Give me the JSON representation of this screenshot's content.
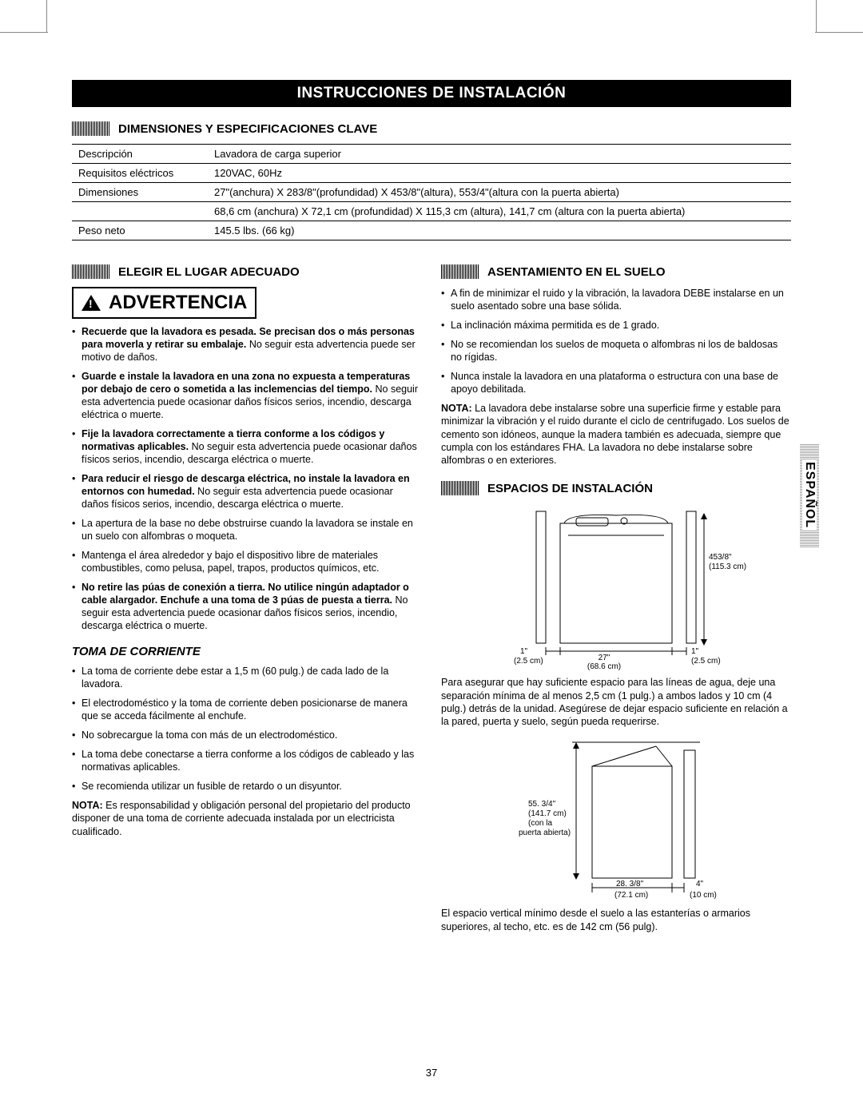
{
  "page_number": "37",
  "main_title": "INSTRUCCIONES DE INSTALACIÓN",
  "side_tab": "ESPAÑOL",
  "sections": {
    "specs_header": "DIMENSIONES Y ESPECIFICACIONES CLAVE",
    "location_header": "ELEGIR EL LUGAR ADECUADO",
    "floor_header": "ASENTAMIENTO EN EL SUELO",
    "clearance_header": "ESPACIOS DE INSTALACIÓN"
  },
  "spec_table": {
    "rows": [
      [
        "Descripción",
        "Lavadora de carga superior"
      ],
      [
        "Requisitos eléctricos",
        "120VAC, 60Hz"
      ],
      [
        "Dimensiones",
        "27\"(anchura) X 283/8\"(profundidad) X 453/8\"(altura), 553/4\"(altura con la puerta abierta)"
      ],
      [
        "",
        "68,6 cm (anchura) X 72,1 cm (profundidad) X 115,3 cm (altura), 141,7 cm (altura con la puerta abierta)"
      ],
      [
        "Peso neto",
        "145.5 lbs. (66 kg)"
      ]
    ]
  },
  "warning_label": "ADVERTENCIA",
  "warning_bullets": [
    {
      "bold": "Recuerde que la lavadora es pesada. Se precisan dos o más personas para moverla y retirar su embalaje.",
      "rest": " No seguir esta advertencia puede ser motivo de daños."
    },
    {
      "bold": "Guarde e instale la lavadora en una zona no expuesta a temperaturas por debajo de cero o sometida a las inclemencias del tiempo.",
      "rest": " No seguir esta advertencia puede ocasionar daños físicos serios, incendio, descarga eléctrica o muerte."
    },
    {
      "bold": "Fije la lavadora correctamente a tierra conforme a los códigos y normativas aplicables.",
      "rest": " No seguir esta advertencia puede ocasionar daños físicos serios, incendio, descarga eléctrica o muerte."
    },
    {
      "bold": "Para reducir el riesgo de descarga eléctrica, no instale la lavadora en entornos con humedad.",
      "rest": " No seguir esta advertencia puede ocasionar daños físicos serios, incendio, descarga eléctrica o muerte."
    },
    {
      "bold": "",
      "rest": "La apertura de la base no debe obstruirse cuando la lavadora se instale en un suelo con alfombras o moqueta."
    },
    {
      "bold": "",
      "rest": "Mantenga el área alrededor y bajo el dispositivo libre de materiales combustibles, como pelusa, papel, trapos, productos químicos, etc."
    },
    {
      "bold": "No retire las púas de conexión a tierra. No utilice ningún adaptador o cable alargador. Enchufe a una toma de 3 púas de puesta a tierra.",
      "rest": " No seguir esta advertencia puede ocasionar daños físicos serios, incendio, descarga eléctrica o muerte."
    }
  ],
  "outlet_heading": "TOMA DE CORRIENTE",
  "outlet_bullets": [
    "La toma de corriente debe estar a 1,5 m (60 pulg.) de cada lado de la lavadora.",
    "El electrodoméstico y la toma de corriente deben posicionarse de manera que se acceda fácilmente al enchufe.",
    "No sobrecargue la toma con más de un electrodoméstico.",
    "La toma debe conectarse a tierra conforme a los códigos de cableado y las normativas aplicables.",
    "Se recomienda utilizar un fusible de retardo o un disyuntor."
  ],
  "outlet_note_bold": "NOTA:",
  "outlet_note": " Es responsabilidad y obligación personal del propietario del producto disponer de una toma de corriente adecuada instalada por un electricista cualificado.",
  "floor_bullets": [
    "A fin de minimizar el ruido y la vibración, la lavadora DEBE instalarse en un suelo asentado sobre una base sólida.",
    "La inclinación máxima permitida es de 1 grado.",
    "No se recomiendan los suelos de moqueta o alfombras ni los de baldosas no rígidas.",
    "Nunca instale la lavadora en una plataforma o estructura con una base de apoyo debilitada."
  ],
  "floor_note_bold": "NOTA:",
  "floor_note": " La lavadora debe instalarse sobre una superficie firme y estable para minimizar la vibración y el ruido durante el ciclo de centrifugado. Los suelos de cemento son idóneos, aunque la madera también es adecuada, siempre que cumpla con los estándares FHA. La lavadora no debe instalarse sobre alfombras o en exteriores.",
  "top_diagram": {
    "height_in": "453/8\"",
    "height_cm": "(115.3 cm)",
    "left_gap_in": "1\"",
    "left_gap_cm": "(2.5 cm)",
    "width_in": "27\"",
    "width_cm": "(68.6 cm)",
    "right_gap_in": "1\"",
    "right_gap_cm": "(2.5 cm)"
  },
  "top_caption": "Para asegurar que hay suficiente espacio para las líneas de agua, deje una separación mínima de al menos 2,5 cm (1 pulg.) a ambos lados y 10 cm (4 pulg.) detrás de la unidad. Asegúrese de dejar espacio suficiente en relación a la pared, puerta y suelo, según pueda requerirse.",
  "side_diagram": {
    "open_in": "55. 3/4\"",
    "open_cm": "(141.7 cm)",
    "open_note1": "(con la",
    "open_note2": "puerta abierta)",
    "depth_in": "28. 3/8\"",
    "depth_cm": "(72.1 cm)",
    "back_in": "4\"",
    "back_cm": "(10 cm)"
  },
  "side_caption": "El espacio vertical mínimo desde el suelo a las estanterías o armarios superiores, al techo, etc. es de 142 cm (56 pulg).",
  "colors": {
    "ink": "#000000",
    "paper": "#ffffff"
  }
}
